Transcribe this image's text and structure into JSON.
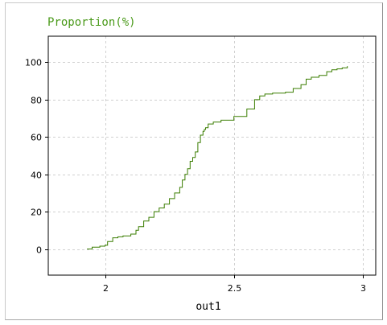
{
  "chart_data": {
    "type": "line",
    "title": "Proportion(%)",
    "xlabel": "out1",
    "ylabel": "",
    "xlim": [
      1.78,
      3.05
    ],
    "ylim": [
      -14,
      114
    ],
    "xticks": [
      2,
      2.5,
      3
    ],
    "xtick_labels": [
      "2",
      "2.5",
      "3"
    ],
    "yticks": [
      0,
      20,
      40,
      60,
      80,
      100
    ],
    "ytick_labels": [
      "0",
      "20",
      "40",
      "60",
      "80",
      "100"
    ],
    "grid": true,
    "legend": "none",
    "series": [
      {
        "step": true,
        "x": [
          1.93,
          1.95,
          1.98,
          2.0,
          2.01,
          2.03,
          2.05,
          2.07,
          2.1,
          2.12,
          2.13,
          2.15,
          2.17,
          2.19,
          2.21,
          2.23,
          2.25,
          2.27,
          2.29,
          2.3,
          2.31,
          2.32,
          2.33,
          2.34,
          2.35,
          2.36,
          2.37,
          2.38,
          2.385,
          2.39,
          2.4,
          2.42,
          2.45,
          2.5,
          2.55,
          2.58,
          2.6,
          2.62,
          2.65,
          2.7,
          2.73,
          2.76,
          2.78,
          2.8,
          2.83,
          2.86,
          2.88,
          2.9,
          2.92,
          2.94
        ],
        "y": [
          0,
          1,
          1.5,
          2,
          4,
          6,
          6.5,
          7,
          8,
          10,
          12,
          15,
          17,
          20,
          22,
          24,
          27,
          30,
          33,
          37,
          40,
          43,
          47,
          49,
          52,
          57,
          61,
          63,
          64,
          65,
          67,
          68,
          69,
          71,
          75,
          80,
          82,
          83,
          83.5,
          84,
          86,
          88,
          91,
          92,
          93,
          95,
          96,
          96.5,
          97,
          98
        ]
      }
    ],
    "colors": {
      "line": "#3a7d00",
      "title": "#4a9a1a",
      "grid": "#d0d0d0",
      "axes": "#000000"
    }
  }
}
